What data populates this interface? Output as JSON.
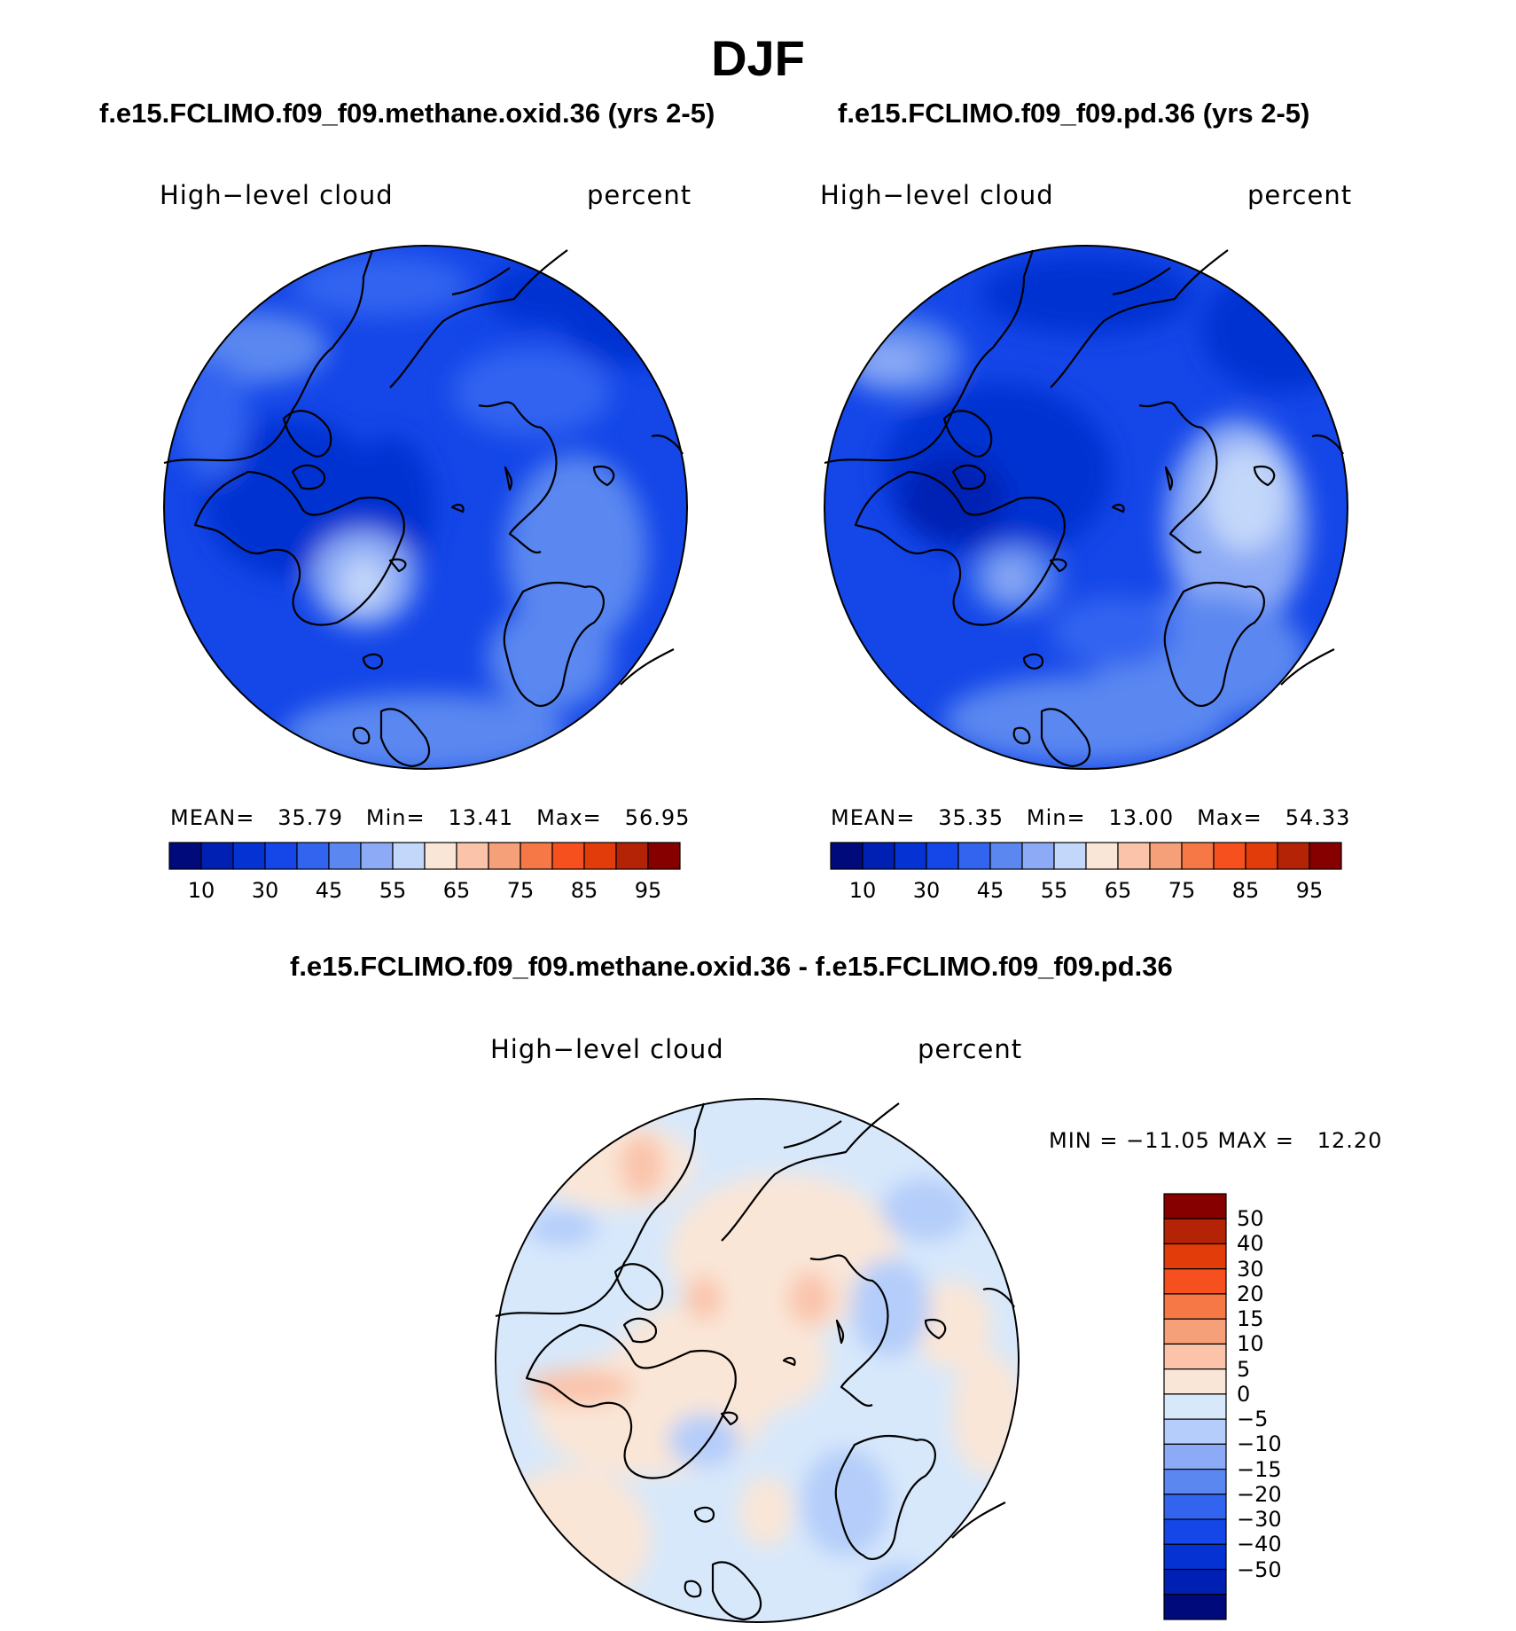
{
  "page": {
    "title": "DJF",
    "diff_title": "f.e15.FCLIMO.f09_f09.methane.oxid.36 - f.e15.FCLIMO.f09_f09.pd.36"
  },
  "panels": [
    {
      "case_title": "f.e15.FCLIMO.f09_f09.methane.oxid.36 (yrs 2-5)",
      "variable": "High−level cloud",
      "units": "percent",
      "stats": {
        "mean_label": "MEAN=",
        "mean": "35.79",
        "min_label": "Min=",
        "min": "13.41",
        "max_label": "Max=",
        "max": "56.95"
      }
    },
    {
      "case_title": "f.e15.FCLIMO.f09_f09.pd.36 (yrs 2-5)",
      "variable": "High−level cloud",
      "units": "percent",
      "stats": {
        "mean_label": "MEAN=",
        "mean": "35.35",
        "min_label": "Min=",
        "min": "13.00",
        "max_label": "Max=",
        "max": "54.33"
      }
    }
  ],
  "diff_panel": {
    "variable": "High−level cloud",
    "units": "percent",
    "minmax": "MIN = −11.05 MAX =   12.20"
  },
  "colorbar_abs": {
    "colors": [
      "#000a7a",
      "#0020b4",
      "#0532d2",
      "#1446e8",
      "#3264f0",
      "#5a87f0",
      "#8caaf5",
      "#c3d7fa",
      "#fae6d7",
      "#fac3aa",
      "#f5a078",
      "#f57846",
      "#f5501e",
      "#e13c0a",
      "#b42305",
      "#870000"
    ],
    "ticks": [
      "10",
      "30",
      "45",
      "55",
      "65",
      "75",
      "85",
      "95"
    ]
  },
  "colorbar_diff": {
    "colors": [
      "#870000",
      "#b42305",
      "#e13c0a",
      "#f5501e",
      "#f57846",
      "#f5a078",
      "#fac3aa",
      "#fae6d7",
      "#d7e8fb",
      "#b4cdfa",
      "#8caaf5",
      "#5a87f0",
      "#3264f0",
      "#1446e8",
      "#0532d2",
      "#0020b4",
      "#000a7a"
    ],
    "ticks": [
      "50",
      "40",
      "30",
      "20",
      "15",
      "10",
      "5",
      "0",
      "−5",
      "−10",
      "−15",
      "−20",
      "−30",
      "−40",
      "−50"
    ]
  }
}
